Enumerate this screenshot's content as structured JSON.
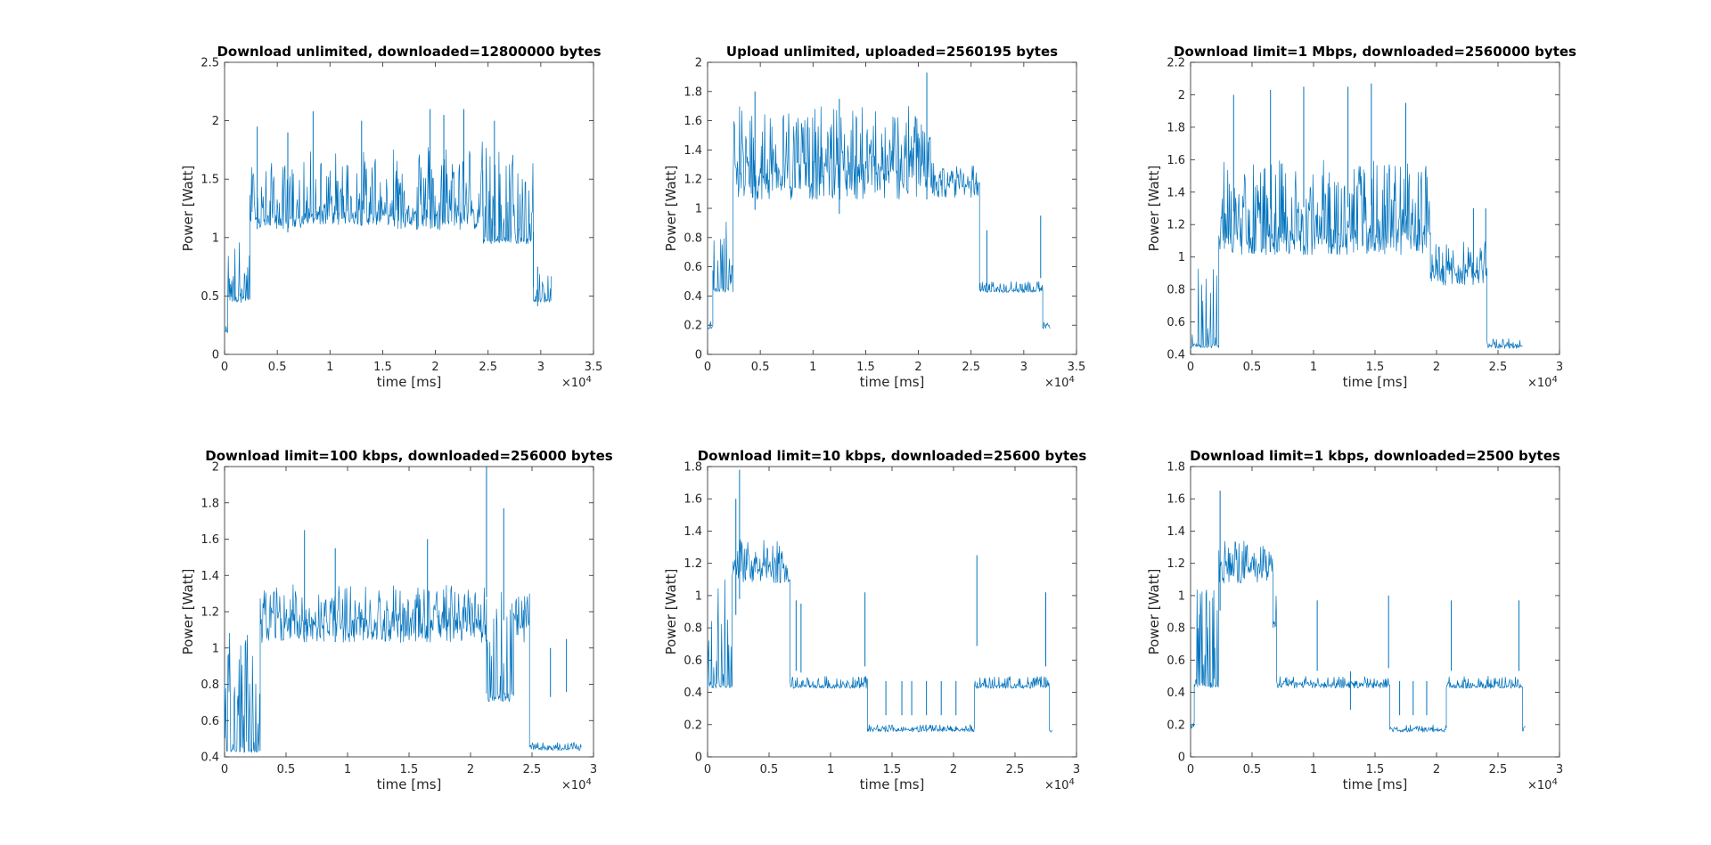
{
  "figure": {
    "background": "#ffffff",
    "line_color": "#0072BD",
    "axis_color": "#262626"
  },
  "chart_data": [
    {
      "type": "line",
      "title": "Download unlimited, downloaded=12800000 bytes",
      "xlabel": "time [ms]",
      "ylabel": "Power [Watt]",
      "xlim": [
        0,
        35000
      ],
      "ylim": [
        0,
        2.5
      ],
      "xticks": [
        0,
        5000,
        10000,
        15000,
        20000,
        25000,
        30000,
        35000
      ],
      "xtick_labels": [
        "0",
        "0.5",
        "1",
        "1.5",
        "2",
        "2.5",
        "3",
        "3.5"
      ],
      "yticks": [
        0,
        0.5,
        1,
        1.5,
        2,
        2.5
      ],
      "ytick_labels": [
        "0",
        "0.5",
        "1",
        "1.5",
        "2",
        "2.5"
      ],
      "x_exponent": "4",
      "series": [
        {
          "segments": [
            {
              "x0": 0,
              "x1": 300,
              "base": 0.2,
              "hi": 0.25,
              "lo": 0.18
            },
            {
              "x0": 300,
              "x1": 2400,
              "base": 0.5,
              "hi": 1.0,
              "lo": 0.43
            },
            {
              "x0": 2400,
              "x1": 8000,
              "base": 1.17,
              "hi": 1.65,
              "lo": 1.05
            },
            {
              "x0": 8000,
              "x1": 16000,
              "base": 1.22,
              "hi": 1.75,
              "lo": 1.08
            },
            {
              "x0": 16000,
              "x1": 24500,
              "base": 1.25,
              "hi": 1.85,
              "lo": 1.02
            },
            {
              "x0": 24500,
              "x1": 29300,
              "base": 1.0,
              "hi": 1.8,
              "lo": 0.93
            },
            {
              "x0": 29300,
              "x1": 31000,
              "base": 0.47,
              "hi": 0.7,
              "lo": 0.44
            }
          ],
          "spikes": [
            [
              3100,
              1.95
            ],
            [
              6000,
              1.9
            ],
            [
              8400,
              2.08
            ],
            [
              13000,
              2.0
            ],
            [
              19500,
              2.1
            ],
            [
              20800,
              2.05
            ],
            [
              22700,
              2.1
            ],
            [
              25600,
              2.0
            ],
            [
              29300,
              1.05
            ],
            [
              29700,
              0.75
            ]
          ]
        }
      ]
    },
    {
      "type": "line",
      "title": "Upload unlimited, uploaded=2560195 bytes",
      "xlabel": "time [ms]",
      "ylabel": "Power [Watt]",
      "xlim": [
        0,
        35000
      ],
      "ylim": [
        0,
        2
      ],
      "xticks": [
        0,
        5000,
        10000,
        15000,
        20000,
        25000,
        30000,
        35000
      ],
      "xtick_labels": [
        "0",
        "0.5",
        "1",
        "1.5",
        "2",
        "2.5",
        "3",
        "3.5"
      ],
      "yticks": [
        0,
        0.2,
        0.4,
        0.6,
        0.8,
        1,
        1.2,
        1.4,
        1.6,
        1.8,
        2
      ],
      "ytick_labels": [
        "0",
        "0.2",
        "0.4",
        "0.6",
        "0.8",
        "1",
        "1.2",
        "1.4",
        "1.6",
        "1.8",
        "2"
      ],
      "x_exponent": "4",
      "series": [
        {
          "segments": [
            {
              "x0": 0,
              "x1": 500,
              "base": 0.2,
              "hi": 0.3,
              "lo": 0.17
            },
            {
              "x0": 500,
              "x1": 2400,
              "base": 0.45,
              "hi": 0.95,
              "lo": 0.42
            },
            {
              "x0": 2400,
              "x1": 21500,
              "base": 1.3,
              "hi": 1.7,
              "lo": 1.0
            },
            {
              "x0": 21500,
              "x1": 25800,
              "base": 1.17,
              "hi": 1.3,
              "lo": 1.05
            },
            {
              "x0": 25800,
              "x1": 31800,
              "base": 0.44,
              "hi": 0.5,
              "lo": 0.42
            },
            {
              "x0": 31800,
              "x1": 32500,
              "base": 0.2,
              "hi": 0.22,
              "lo": 0.16
            }
          ],
          "spikes": [
            [
              4500,
              1.8
            ],
            [
              12500,
              1.75
            ],
            [
              20800,
              1.93
            ],
            [
              26500,
              0.85
            ],
            [
              31600,
              0.95
            ]
          ]
        }
      ]
    },
    {
      "type": "line",
      "title": "Download limit=1 Mbps, downloaded=2560000 bytes",
      "xlabel": "time [ms]",
      "ylabel": "Power [Watt]",
      "xlim": [
        0,
        30000
      ],
      "ylim": [
        0.4,
        2.2
      ],
      "xticks": [
        0,
        5000,
        10000,
        15000,
        20000,
        25000,
        30000
      ],
      "xtick_labels": [
        "0",
        "0.5",
        "1",
        "1.5",
        "2",
        "2.5",
        "3"
      ],
      "yticks": [
        0.4,
        0.6,
        0.8,
        1,
        1.2,
        1.4,
        1.6,
        1.8,
        2,
        2.2
      ],
      "ytick_labels": [
        "0.4",
        "0.6",
        "0.8",
        "1",
        "1.2",
        "1.4",
        "1.6",
        "1.8",
        "2",
        "2.2"
      ],
      "x_exponent": "4",
      "series": [
        {
          "segments": [
            {
              "x0": 0,
              "x1": 2300,
              "base": 0.47,
              "hi": 1.05,
              "lo": 0.43
            },
            {
              "x0": 2300,
              "x1": 19500,
              "base": 1.15,
              "hi": 1.6,
              "lo": 0.98
            },
            {
              "x0": 19500,
              "x1": 24100,
              "base": 0.92,
              "hi": 1.1,
              "lo": 0.8
            },
            {
              "x0": 24100,
              "x1": 27000,
              "base": 0.46,
              "hi": 0.5,
              "lo": 0.43
            }
          ],
          "spikes": [
            [
              3500,
              2.0
            ],
            [
              6500,
              2.03
            ],
            [
              9200,
              2.05
            ],
            [
              12800,
              2.05
            ],
            [
              14700,
              2.07
            ],
            [
              17500,
              1.95
            ],
            [
              23000,
              1.3
            ],
            [
              24000,
              1.3
            ]
          ]
        }
      ]
    },
    {
      "type": "line",
      "title": "Download limit=100 kbps, downloaded=256000 bytes",
      "xlabel": "time [ms]",
      "ylabel": "Power [Watt]",
      "xlim": [
        0,
        30000
      ],
      "ylim": [
        0.4,
        2
      ],
      "xticks": [
        0,
        5000,
        10000,
        15000,
        20000,
        25000,
        30000
      ],
      "xtick_labels": [
        "0",
        "0.5",
        "1",
        "1.5",
        "2",
        "2.5",
        "3"
      ],
      "yticks": [
        0.4,
        0.6,
        0.8,
        1,
        1.2,
        1.4,
        1.6,
        1.8,
        2
      ],
      "ytick_labels": [
        "0.4",
        "0.6",
        "0.8",
        "1",
        "1.2",
        "1.4",
        "1.6",
        "1.8",
        "2"
      ],
      "x_exponent": "4",
      "series": [
        {
          "segments": [
            {
              "x0": 0,
              "x1": 2900,
              "base": 0.44,
              "hi": 1.1,
              "lo": 0.42
            },
            {
              "x0": 2900,
              "x1": 21300,
              "base": 1.15,
              "hi": 1.35,
              "lo": 1.0
            },
            {
              "x0": 21300,
              "x1": 23500,
              "base": 0.75,
              "hi": 1.45,
              "lo": 0.69
            },
            {
              "x0": 23500,
              "x1": 24800,
              "base": 1.15,
              "hi": 1.3,
              "lo": 1.0
            },
            {
              "x0": 24800,
              "x1": 29000,
              "base": 0.45,
              "hi": 0.48,
              "lo": 0.43
            }
          ],
          "spikes": [
            [
              6500,
              1.65
            ],
            [
              9000,
              1.55
            ],
            [
              16500,
              1.6
            ],
            [
              21300,
              2.0
            ],
            [
              22700,
              1.77
            ],
            [
              26500,
              1.0
            ],
            [
              27800,
              1.05
            ]
          ]
        }
      ]
    },
    {
      "type": "line",
      "title": "Download limit=10 kbps, downloaded=25600 bytes",
      "xlabel": "time [ms]",
      "ylabel": "Power [Watt]",
      "xlim": [
        0,
        30000
      ],
      "ylim": [
        0,
        1.8
      ],
      "xticks": [
        0,
        5000,
        10000,
        15000,
        20000,
        25000,
        30000
      ],
      "xtick_labels": [
        "0",
        "0.5",
        "1",
        "1.5",
        "2",
        "2.5",
        "3"
      ],
      "yticks": [
        0,
        0.2,
        0.4,
        0.6,
        0.8,
        1,
        1.2,
        1.4,
        1.6,
        1.8
      ],
      "ytick_labels": [
        "0",
        "0.2",
        "0.4",
        "0.6",
        "0.8",
        "1",
        "1.2",
        "1.4",
        "1.6",
        "1.8"
      ],
      "x_exponent": "4",
      "series": [
        {
          "segments": [
            {
              "x0": 0,
              "x1": 2000,
              "base": 0.45,
              "hi": 1.1,
              "lo": 0.42
            },
            {
              "x0": 2000,
              "x1": 6700,
              "base": 1.18,
              "hi": 1.35,
              "lo": 1.05
            },
            {
              "x0": 6700,
              "x1": 13000,
              "base": 0.44,
              "hi": 0.5,
              "lo": 0.42
            },
            {
              "x0": 13000,
              "x1": 21700,
              "base": 0.17,
              "hi": 0.2,
              "lo": 0.15
            },
            {
              "x0": 21700,
              "x1": 27800,
              "base": 0.44,
              "hi": 0.5,
              "lo": 0.42
            },
            {
              "x0": 27800,
              "x1": 28000,
              "base": 0.17,
              "hi": 0.2,
              "lo": 0.15
            }
          ],
          "spikes": [
            [
              2300,
              1.6
            ],
            [
              2600,
              1.78
            ],
            [
              7200,
              0.97
            ],
            [
              7600,
              0.95
            ],
            [
              12800,
              1.02
            ],
            [
              14500,
              0.47
            ],
            [
              15800,
              0.47
            ],
            [
              16600,
              0.47
            ],
            [
              17800,
              0.47
            ],
            [
              19000,
              0.47
            ],
            [
              20200,
              0.47
            ],
            [
              21900,
              1.25
            ],
            [
              27500,
              1.02
            ]
          ]
        }
      ]
    },
    {
      "type": "line",
      "title": "Download limit=1 kbps, downloaded=2500 bytes",
      "xlabel": "time [ms]",
      "ylabel": "Power [Watt]",
      "xlim": [
        0,
        30000
      ],
      "ylim": [
        0,
        1.8
      ],
      "xticks": [
        0,
        5000,
        10000,
        15000,
        20000,
        25000,
        30000
      ],
      "xtick_labels": [
        "0",
        "0.5",
        "1",
        "1.5",
        "2",
        "2.5",
        "3"
      ],
      "yticks": [
        0,
        0.2,
        0.4,
        0.6,
        0.8,
        1,
        1.2,
        1.4,
        1.6,
        1.8
      ],
      "ytick_labels": [
        "0",
        "0.2",
        "0.4",
        "0.6",
        "0.8",
        "1",
        "1.2",
        "1.4",
        "1.6",
        "1.8"
      ],
      "x_exponent": "4",
      "series": [
        {
          "segments": [
            {
              "x0": 0,
              "x1": 300,
              "base": 0.2,
              "hi": 0.22,
              "lo": 0.17
            },
            {
              "x0": 300,
              "x1": 2300,
              "base": 0.46,
              "hi": 1.05,
              "lo": 0.42
            },
            {
              "x0": 2300,
              "x1": 6700,
              "base": 1.18,
              "hi": 1.35,
              "lo": 1.05
            },
            {
              "x0": 6700,
              "x1": 7000,
              "base": 0.85,
              "hi": 1.0,
              "lo": 0.78
            },
            {
              "x0": 7000,
              "x1": 16200,
              "base": 0.45,
              "hi": 0.5,
              "lo": 0.42
            },
            {
              "x0": 16200,
              "x1": 20800,
              "base": 0.17,
              "hi": 0.2,
              "lo": 0.15
            },
            {
              "x0": 20800,
              "x1": 27000,
              "base": 0.44,
              "hi": 0.5,
              "lo": 0.42
            },
            {
              "x0": 27000,
              "x1": 27200,
              "base": 0.17,
              "hi": 0.2,
              "lo": 0.15
            }
          ],
          "spikes": [
            [
              2400,
              1.65
            ],
            [
              10300,
              0.97
            ],
            [
              13000,
              0.53
            ],
            [
              16100,
              1.0
            ],
            [
              17000,
              0.47
            ],
            [
              18100,
              0.47
            ],
            [
              19200,
              0.47
            ],
            [
              21200,
              0.97
            ],
            [
              26700,
              0.97
            ]
          ]
        }
      ]
    }
  ]
}
